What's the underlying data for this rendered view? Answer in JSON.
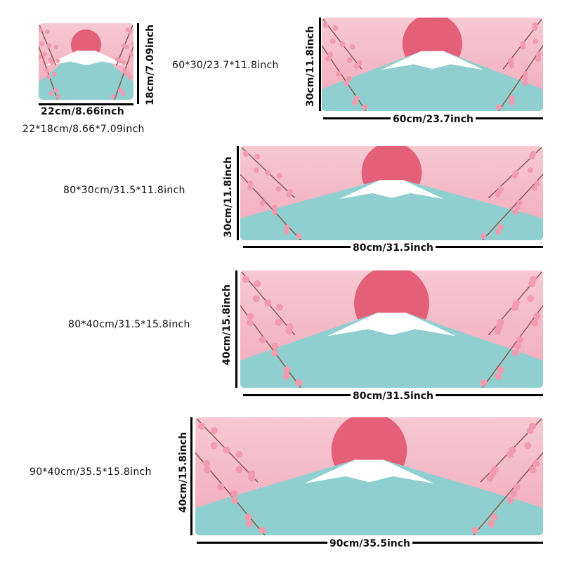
{
  "colors": {
    "sky_top": "#f6c9d3",
    "sky_bottom": "#f2a9bb",
    "sun": "#e45f78",
    "mountain": "#8fcfcf",
    "snow": "#ffffff",
    "blossom": "#f19bb0",
    "branch": "#8a5a4a"
  },
  "sizes": [
    {
      "caption": "22*18cm/8.66*7.09inch",
      "width_label": "22cm/8.66inch",
      "height_label": "18cm/7.09inch"
    },
    {
      "caption": "60*30/23.7*11.8inch",
      "width_label": "60cm/23.7inch",
      "height_label": "30cm/11.8inch"
    },
    {
      "caption": "80*30cm/31.5*11.8inch",
      "width_label": "80cm/31.5inch",
      "height_label": "30cm/11.8inch"
    },
    {
      "caption": "80*40cm/31.5*15.8inch",
      "width_label": "80cm/31.5inch",
      "height_label": "40cm/15.8inch"
    },
    {
      "caption": "90*40cm/35.5*15.8inch",
      "width_label": "90cm/35.5inch",
      "height_label": "40cm/15.8inch"
    }
  ]
}
